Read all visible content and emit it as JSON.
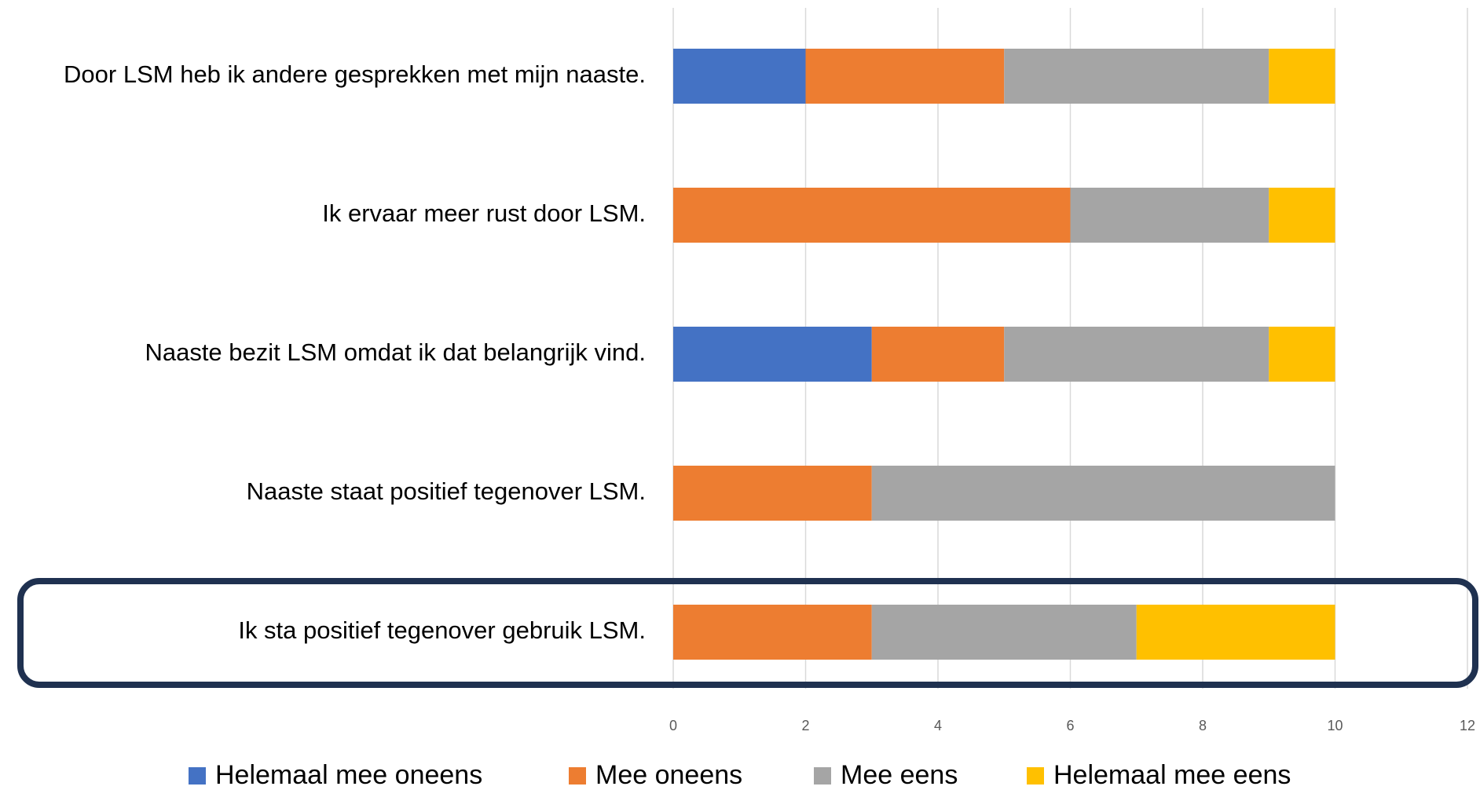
{
  "chart_data": {
    "type": "stacked-bar-horizontal",
    "categories": [
      "Door LSM heb ik andere gesprekken met mijn naaste.",
      "Ik ervaar meer rust door LSM.",
      "Naaste bezit LSM omdat ik dat belangrijk vind.",
      "Naaste staat positief tegenover LSM.",
      "Ik sta positief tegenover gebruik LSM."
    ],
    "series": [
      {
        "name": "Helemaal mee oneens",
        "color": "#4472c4",
        "values": [
          2,
          0,
          3,
          0,
          0
        ]
      },
      {
        "name": "Mee oneens",
        "color": "#ed7d31",
        "values": [
          3,
          6,
          2,
          3,
          3
        ]
      },
      {
        "name": "Mee eens",
        "color": "#a5a5a5",
        "values": [
          4,
          3,
          4,
          7,
          4
        ]
      },
      {
        "name": "Helemaal mee eens",
        "color": "#ffc000",
        "values": [
          1,
          1,
          1,
          0,
          3
        ]
      }
    ],
    "xlim": [
      0,
      12
    ],
    "xticks": [
      0,
      2,
      4,
      6,
      8,
      10,
      12
    ],
    "grid": true,
    "legend": "bottom"
  }
}
